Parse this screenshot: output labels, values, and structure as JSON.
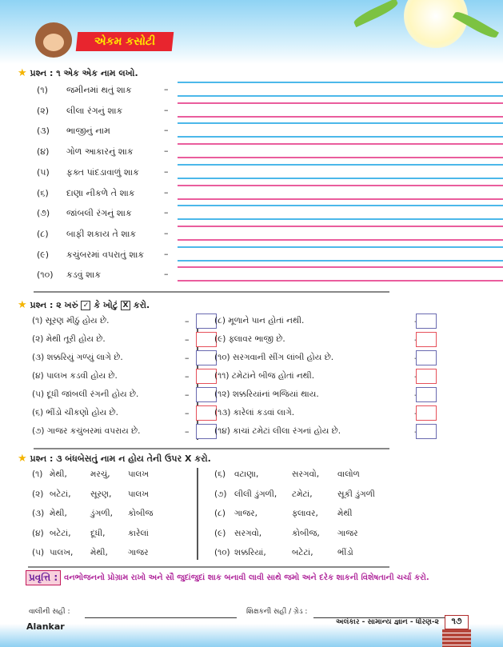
{
  "header": {
    "title": "એકમ કસોટી"
  },
  "q1": {
    "heading": "પ્રશ્ન : ૧ એક એક નામ લખો.",
    "items": [
      {
        "n": "(૧)",
        "t": "જમીનમાં થતું શાક"
      },
      {
        "n": "(૨)",
        "t": "લીલા રંગનું શાક"
      },
      {
        "n": "(૩)",
        "t": "ભાજીનું નામ"
      },
      {
        "n": "(૪)",
        "t": "ગોળ આકારનું શાક"
      },
      {
        "n": "(૫)",
        "t": "ફક્ત પાંદડાવાળું શાક"
      },
      {
        "n": "(૬)",
        "t": "દાણા નીકળે તે શાક"
      },
      {
        "n": "(૭)",
        "t": "જાંબલી રંગનું શાક"
      },
      {
        "n": "(૮)",
        "t": "બાફી શકાય તે શાક"
      },
      {
        "n": "(૯)",
        "t": "કચુંબરમાં વપરાતું શાક"
      },
      {
        "n": "(૧૦)",
        "t": "કડવું શાક"
      }
    ]
  },
  "q2": {
    "heading_a": "પ્રશ્ન : ૨ ખરું",
    "check": "✓",
    "heading_b": "કે ખોટું",
    "cross": "X",
    "heading_c": "કરો.",
    "left": [
      "(૧) સૂરણ મીઠું હોય છે.",
      "(૨) મેથી તૂરી હોય છે.",
      "(૩) શક્કરિયું ગળ્યું લાગે છે.",
      "(૪) પાલખ કડવી હોય છે.",
      "(૫) દૂધી જાંબલી રંગની હોય છે.",
      "(૬) ભીંડો ચીકણો હોય છે.",
      "(૭) ગાજર કચુંબરમાં વપરાય છે."
    ],
    "right": [
      "(૮) મૂળાને પાન હોતાં નથી.",
      "(૯) ફ્લાવર ભાજી છે.",
      "(૧૦) સરગવાની સીંગ લાંબી હોય છે.",
      "(૧૧) ટમેટાંને બીજ હોતાં નથી.",
      "(૧૨) શક્કરિયાંનાં ભજિયાં થાય.",
      "(૧૩) કારેલાં કડવાં લાગે.",
      "(૧૪) કાચાં ટમેટાં લીલા રંગનાં હોય છે."
    ]
  },
  "q3": {
    "heading": "પ્રશ્ન : ૩ બંધબેસતું નામ ન હોય તેની ઉપર X કરો.",
    "rows": [
      [
        "(૧)",
        "મેથી,",
        "મરચું,",
        "પાલખ"
      ],
      [
        "(૨)",
        "બટેટાં,",
        "સૂરણ,",
        "પાલખ"
      ],
      [
        "(૩)",
        "મેથી,",
        "ડુંગળી,",
        "કોબીજ"
      ],
      [
        "(૪)",
        "બટેટાં,",
        "દૂધી,",
        "કારેલાં"
      ],
      [
        "(૫)",
        "પાલખ,",
        "મેથી,",
        "ગાજર"
      ],
      [
        "(૬)",
        "વટાણા,",
        "સરગવો,",
        "વાલોળ"
      ],
      [
        "(૭)",
        "લીલી ડુંગળી,",
        "ટમેટાં,",
        "સૂકી ડુંગળી"
      ],
      [
        "(૮)",
        "ગાજર,",
        "ફ્લાવર,",
        "મેથી"
      ],
      [
        "(૯)",
        "સરગવો,",
        "કોબીજ,",
        "ગાજર"
      ],
      [
        "(૧૦)",
        "શક્કરિયાં,",
        "બટેટાં,",
        "ભીંડો"
      ]
    ]
  },
  "activity": {
    "label": "પ્રવૃત્તિ :",
    "text": "વનભોજનનો પ્રોગ્રામ રાખો અને સૌ જુદાંજુદાં શાક બનાવી લાવી સાથે જમો અને દરેક શાકની વિશેષતાની ચર્ચા કરો."
  },
  "footer": {
    "parent_sign": "વાલીની સહી :",
    "teacher_sign": "શિક્ષકની સહી / ગ્રેડ :",
    "brand": "Alankar",
    "book": "અલંકાર - સામાન્ય જ્ઞાન - ધોરણ-૨",
    "page": "૧૭"
  },
  "colors": {
    "title_bg": "#e8252e",
    "title_text": "#ffe600",
    "line_blue": "#4cb8ea",
    "line_pink": "#ea5d9d",
    "box_blue": "#6a6ab0",
    "box_red": "#e6505a",
    "activity": "#b0279b"
  }
}
